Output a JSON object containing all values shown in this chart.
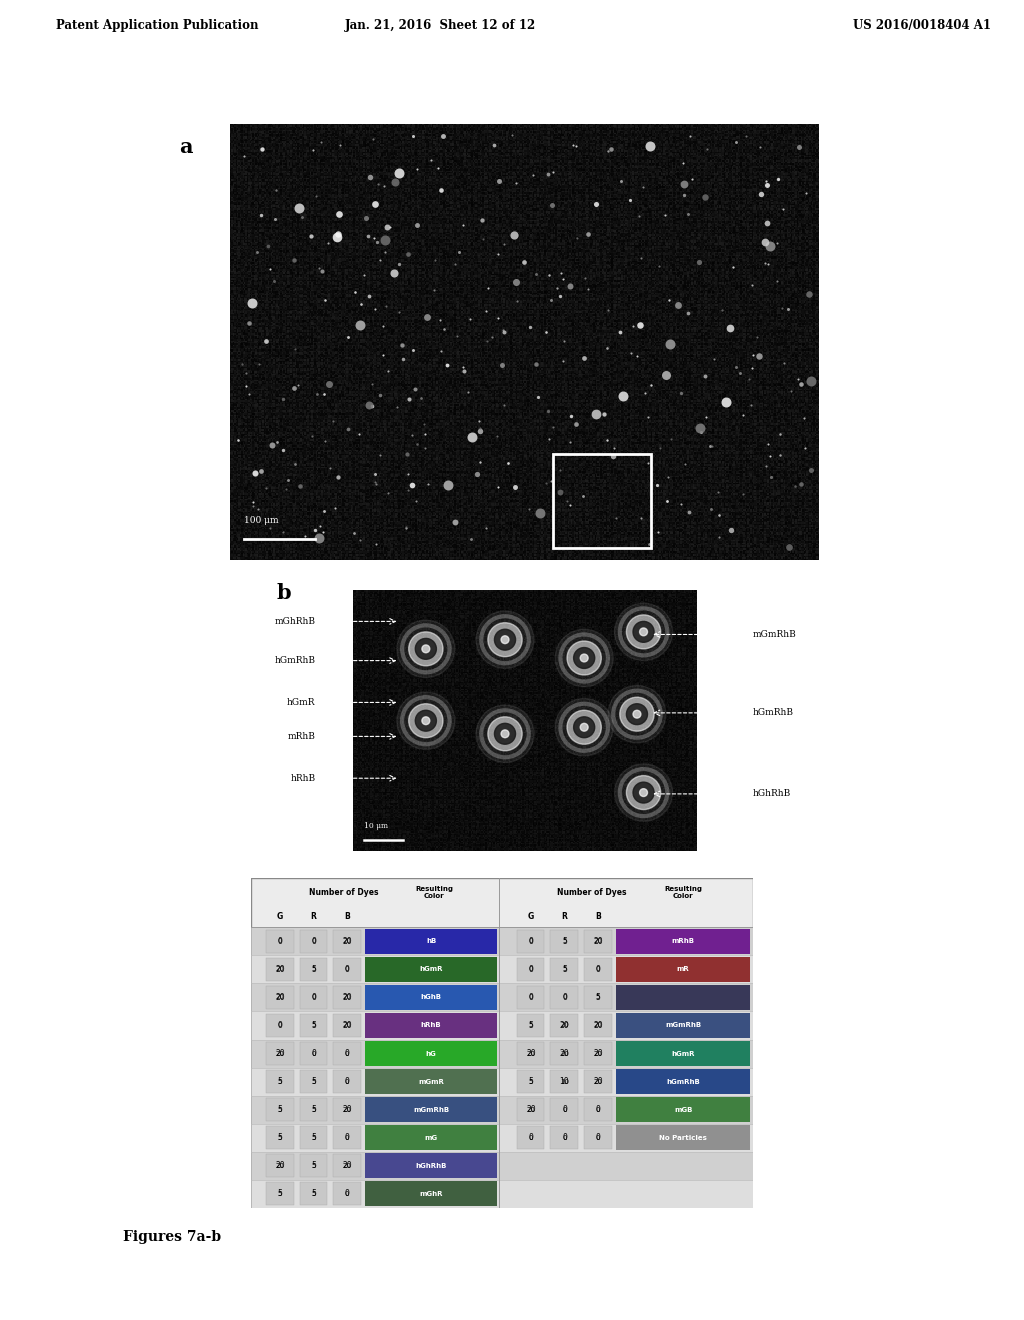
{
  "header_left": "Patent Application Publication",
  "header_mid": "Jan. 21, 2016  Sheet 12 of 12",
  "header_right": "US 2016/0018404 A1",
  "label_a": "a",
  "label_b": "b",
  "fig_caption": "Figures 7a-b",
  "scale_bar_a": "100 μm",
  "scale_bar_b": "10 μm",
  "bg_color": "#ffffff",
  "image_bg": "#111111",
  "left_annots": [
    [
      "mGhRhB",
      0.88
    ],
    [
      "hGmRhB",
      0.73
    ],
    [
      "hGmR",
      0.57
    ],
    [
      "mRhB",
      0.44
    ],
    [
      "hRhB",
      0.28
    ]
  ],
  "right_annots": [
    [
      "mGmRhB",
      0.83
    ],
    [
      "hGmRhB",
      0.53
    ],
    [
      "hGhRhB",
      0.22
    ]
  ],
  "left_rows": [
    [
      "0",
      "0",
      "20",
      "hB",
      "#2828a8"
    ],
    [
      "20",
      "5",
      "0",
      "hGmR",
      "#286828"
    ],
    [
      "20",
      "0",
      "20",
      "hGhB",
      "#2858b0"
    ],
    [
      "0",
      "5",
      "20",
      "hRhB",
      "#683080"
    ],
    [
      "20",
      "0",
      "0",
      "hG",
      "#28a828"
    ],
    [
      "5",
      "5",
      "0",
      "mGmR",
      "#507050"
    ],
    [
      "5",
      "5",
      "20",
      "mGmRhB",
      "#385080"
    ],
    [
      "5",
      "5",
      "0",
      "mG",
      "#408040"
    ],
    [
      "20",
      "5",
      "20",
      "hGhRhB",
      "#484890"
    ],
    [
      "5",
      "5",
      "0",
      "mGhR",
      "#406040"
    ]
  ],
  "right_rows": [
    [
      "0",
      "5",
      "20",
      "mRhB",
      "#702090"
    ],
    [
      "0",
      "5",
      "0",
      "mR",
      "#903030"
    ],
    [
      "0",
      "0",
      "5",
      "",
      "#383858"
    ],
    [
      "5",
      "20",
      "20",
      "mGmRhB",
      "#3a5080"
    ],
    [
      "20",
      "20",
      "20",
      "hGmR",
      "#208060"
    ],
    [
      "5",
      "10",
      "20",
      "hGmRhB",
      "#284888"
    ],
    [
      "20",
      "0",
      "0",
      "mGB",
      "#408040"
    ],
    [
      "0",
      "0",
      "0",
      "No Particles",
      "#909090"
    ],
    null,
    null
  ]
}
